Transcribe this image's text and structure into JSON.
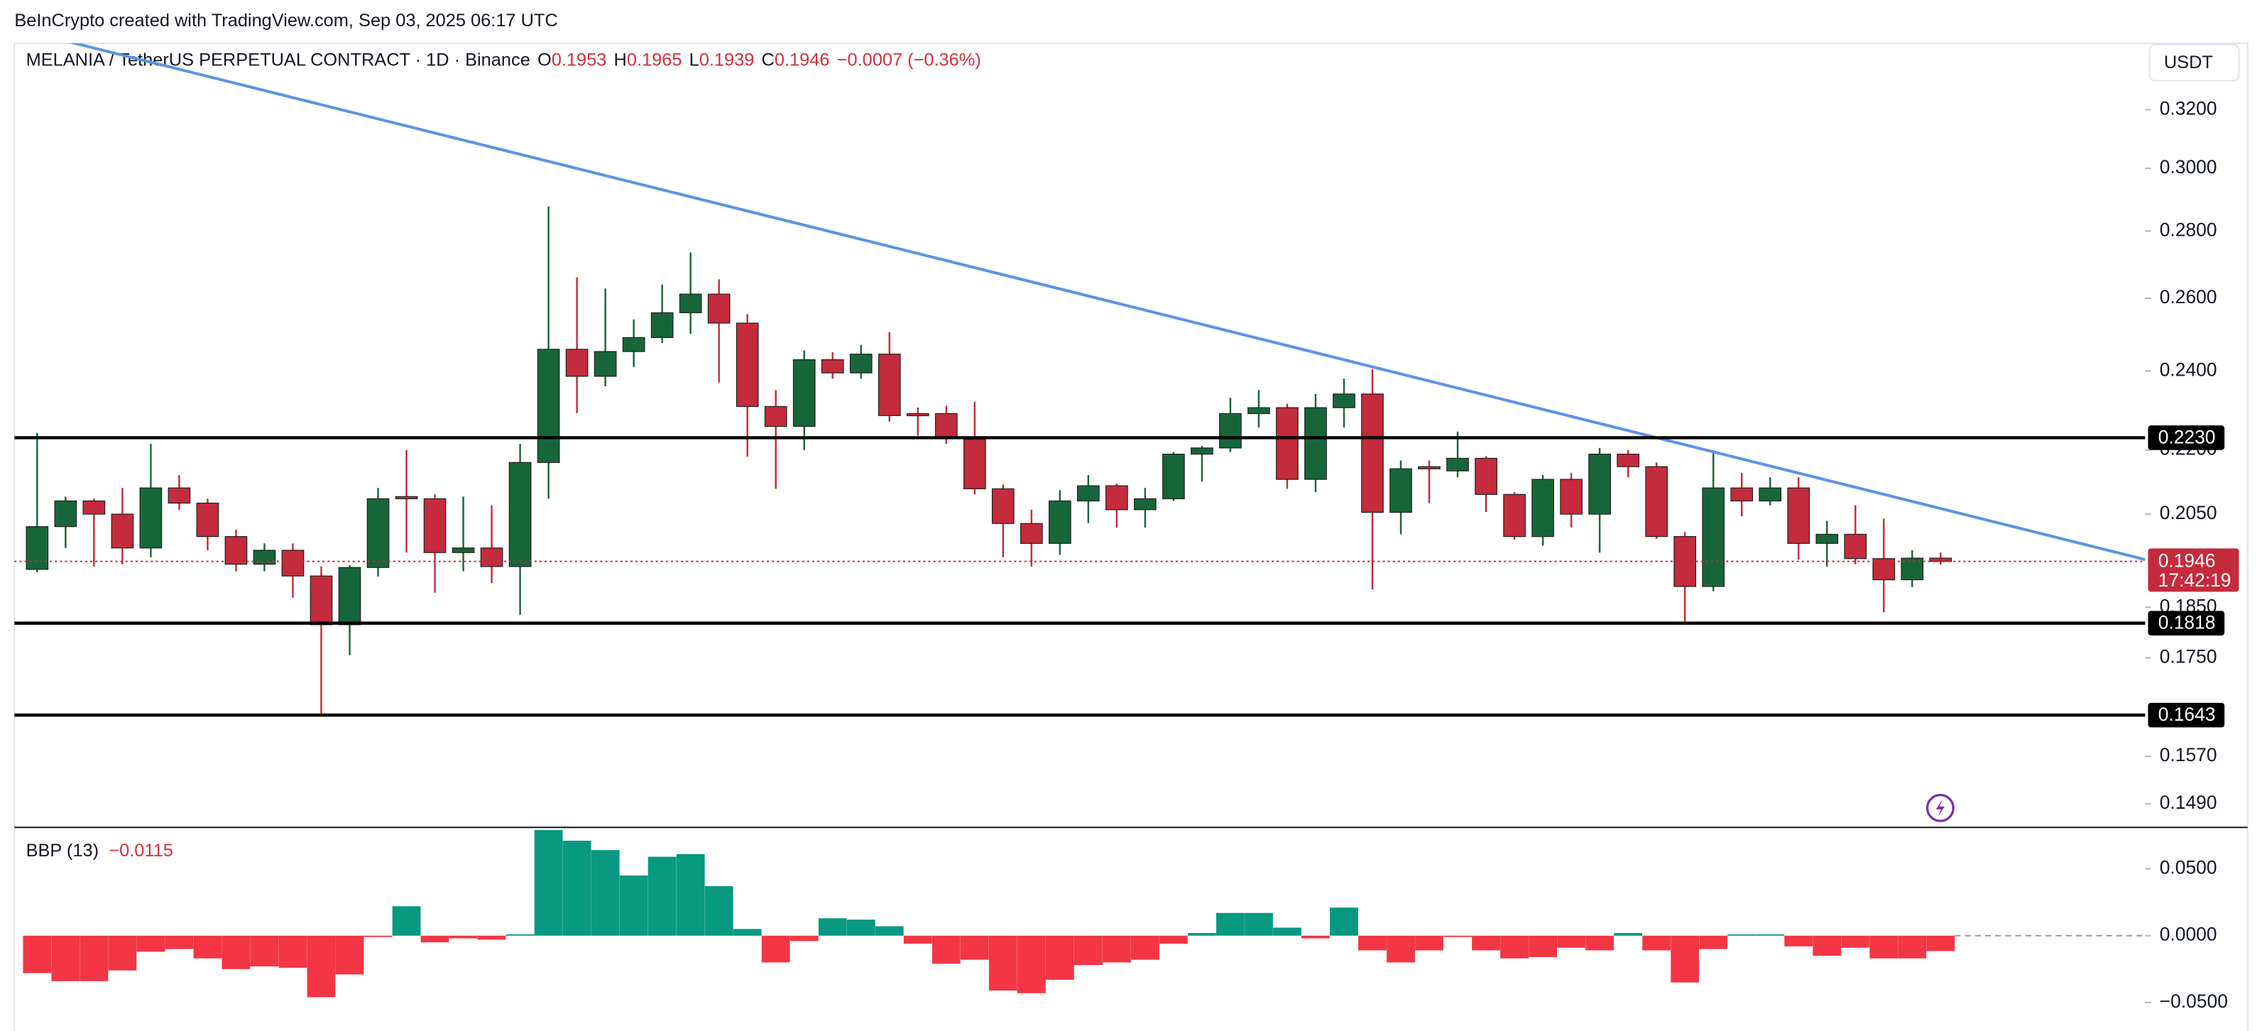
{
  "header": "BeInCrypto created with TradingView.com, Sep 03, 2025 06:17 UTC",
  "chart_data": [
    {
      "type": "candlestick",
      "title": "MELANIA / TetherUS PERPETUAL CONTRACT · 1D · Binance",
      "ohlc_letters": [
        "O",
        "H",
        "L",
        "C"
      ],
      "change": "−0.0007 (−0.36%)",
      "currency": "USDT",
      "countdown": "17:42:19",
      "log_scale": true,
      "up_color": "#17663a",
      "down_color": "#c42b3c",
      "xlim": [
        -0.8,
        74.2
      ],
      "ylim": [
        0.1453,
        0.3443
      ],
      "yticks": [
        {
          "value": 0.149,
          "label": "0.1490"
        },
        {
          "value": 0.157,
          "label": "0.1570"
        },
        {
          "value": 0.175,
          "label": "0.1750"
        },
        {
          "value": 0.185,
          "label": "0.1850"
        },
        {
          "value": 0.205,
          "label": "0.2050"
        },
        {
          "value": 0.22,
          "label": "0.2200"
        },
        {
          "value": 0.24,
          "label": "0.2400"
        },
        {
          "value": 0.26,
          "label": "0.2600"
        },
        {
          "value": 0.28,
          "label": "0.2800"
        },
        {
          "value": 0.3,
          "label": "0.3000"
        },
        {
          "value": 0.32,
          "label": "0.3200"
        }
      ],
      "levels": [
        {
          "value": 0.223,
          "label": "0.2230"
        },
        0.1818,
        0.1643
      ],
      "last_price": 0.1946,
      "trendline": {
        "x": [
          0.7,
          74.2
        ],
        "y": [
          0.346,
          0.195
        ],
        "color": "#5b95e0"
      },
      "open": [
        0.1929,
        0.2022,
        0.208,
        0.205,
        0.1975,
        0.211,
        0.2075,
        0.2,
        0.194,
        0.197,
        0.1915,
        0.1815,
        0.1933,
        0.209,
        0.2085,
        0.1965,
        0.1975,
        0.1935,
        0.217,
        0.2458,
        0.2386,
        0.2452,
        0.249,
        0.2559,
        0.2612,
        0.253,
        0.2308,
        0.2258,
        0.243,
        0.2395,
        0.2445,
        0.229,
        0.229,
        0.2226,
        0.2108,
        0.2029,
        0.1985,
        0.208,
        0.2115,
        0.206,
        0.2085,
        0.219,
        0.2205,
        0.229,
        0.2305,
        0.213,
        0.2305,
        0.234,
        0.2054,
        0.216,
        0.215,
        0.218,
        0.2095,
        0.2,
        0.213,
        0.205,
        0.219,
        0.216,
        0.2,
        0.1893,
        0.211,
        0.208,
        0.211,
        0.1985,
        0.2005,
        0.1952,
        0.1907,
        0.1953
      ],
      "high": [
        0.2242,
        0.209,
        0.2085,
        0.211,
        0.2215,
        0.214,
        0.2085,
        0.2015,
        0.1985,
        0.1985,
        0.1935,
        0.1938,
        0.211,
        0.22,
        0.2095,
        0.209,
        0.207,
        0.2215,
        0.2877,
        0.2661,
        0.2628,
        0.254,
        0.264,
        0.2735,
        0.2655,
        0.2555,
        0.235,
        0.2455,
        0.245,
        0.247,
        0.2505,
        0.2305,
        0.231,
        0.232,
        0.2118,
        0.206,
        0.2105,
        0.214,
        0.212,
        0.211,
        0.2195,
        0.221,
        0.233,
        0.235,
        0.2315,
        0.234,
        0.238,
        0.2405,
        0.2175,
        0.2175,
        0.2245,
        0.2185,
        0.21,
        0.214,
        0.2145,
        0.2205,
        0.22,
        0.217,
        0.201,
        0.22,
        0.2145,
        0.2135,
        0.2135,
        0.2035,
        0.207,
        0.204,
        0.197,
        0.1965
      ],
      "low": [
        0.1923,
        0.1975,
        0.1935,
        0.194,
        0.1955,
        0.206,
        0.197,
        0.1925,
        0.1925,
        0.187,
        0.1643,
        0.1755,
        0.1914,
        0.1965,
        0.188,
        0.1925,
        0.19,
        0.1835,
        0.2085,
        0.2291,
        0.236,
        0.241,
        0.2475,
        0.25,
        0.237,
        0.2184,
        0.2108,
        0.22,
        0.238,
        0.238,
        0.227,
        0.2235,
        0.2215,
        0.2095,
        0.1955,
        0.1935,
        0.196,
        0.203,
        0.202,
        0.202,
        0.208,
        0.2125,
        0.2195,
        0.2255,
        0.2108,
        0.21,
        0.2255,
        0.1887,
        0.2005,
        0.2075,
        0.2135,
        0.2055,
        0.1993,
        0.198,
        0.202,
        0.1965,
        0.2135,
        0.1995,
        0.1815,
        0.1883,
        0.2045,
        0.207,
        0.195,
        0.1935,
        0.194,
        0.184,
        0.1892,
        0.1939
      ],
      "close": [
        0.2022,
        0.208,
        0.205,
        0.1975,
        0.211,
        0.2075,
        0.2,
        0.194,
        0.197,
        0.1915,
        0.1815,
        0.1933,
        0.2085,
        0.2085,
        0.1965,
        0.1975,
        0.1935,
        0.217,
        0.2458,
        0.2386,
        0.2452,
        0.249,
        0.2559,
        0.2612,
        0.253,
        0.2308,
        0.2258,
        0.243,
        0.2395,
        0.2445,
        0.2285,
        0.2285,
        0.223,
        0.2108,
        0.2029,
        0.1985,
        0.208,
        0.2115,
        0.206,
        0.2085,
        0.219,
        0.2205,
        0.229,
        0.2305,
        0.213,
        0.2305,
        0.234,
        0.2054,
        0.2155,
        0.2155,
        0.218,
        0.2095,
        0.2,
        0.213,
        0.205,
        0.219,
        0.216,
        0.2,
        0.1893,
        0.211,
        0.208,
        0.211,
        0.1985,
        0.2005,
        0.1952,
        0.1907,
        0.1953,
        0.1946
      ]
    },
    {
      "type": "bar",
      "title": "BBP (13)",
      "legend_value_label": "−0.0115",
      "up_color": "#089981",
      "down_color": "#f23645",
      "xlim": [
        -0.8,
        74.2
      ],
      "ylim": [
        -0.0717,
        0.0804
      ],
      "yticks": [
        {
          "value": -0.05,
          "label": "−0.0500"
        },
        {
          "value": 0,
          "label": "0.0000"
        },
        {
          "value": 0.05,
          "label": "0.0500"
        }
      ],
      "values": [
        -0.028,
        -0.034,
        -0.034,
        -0.026,
        -0.012,
        -0.01,
        -0.017,
        -0.025,
        -0.023,
        -0.024,
        -0.046,
        -0.029,
        -0.001,
        0.022,
        -0.005,
        -0.002,
        -0.003,
        0.001,
        0.079,
        0.071,
        0.064,
        0.045,
        0.059,
        0.061,
        0.037,
        0.005,
        -0.02,
        -0.004,
        0.013,
        0.012,
        0.007,
        -0.006,
        -0.021,
        -0.018,
        -0.041,
        -0.043,
        -0.033,
        -0.022,
        -0.02,
        -0.018,
        -0.006,
        0.002,
        0.017,
        0.017,
        0.006,
        -0.002,
        0.021,
        -0.011,
        -0.02,
        -0.011,
        -0.001,
        -0.011,
        -0.017,
        -0.016,
        -0.009,
        -0.011,
        0.002,
        -0.011,
        -0.035,
        -0.01,
        0.001,
        0.001,
        -0.008,
        -0.015,
        -0.009,
        -0.017,
        -0.017,
        -0.0115
      ]
    }
  ]
}
